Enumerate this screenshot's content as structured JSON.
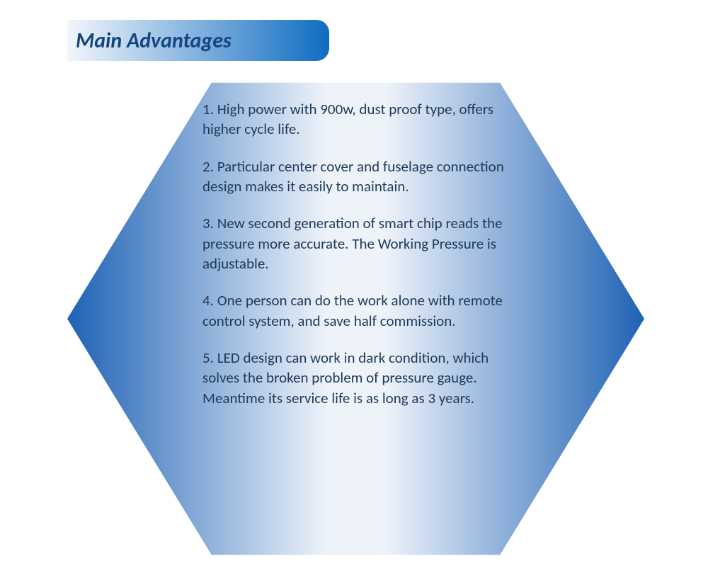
{
  "title": {
    "text": "Main Advantages",
    "color": "#14457e",
    "fontsize": 30,
    "banner_gradient_start": "#f2f6fb",
    "banner_gradient_end": "#0f6cc2"
  },
  "hexagon": {
    "gradient_start": "#1e62b4",
    "gradient_mid": "#eef3fa",
    "gradient_end": "#1e62b4"
  },
  "body": {
    "text_color": "#1f3a5a",
    "fontsize": 21
  },
  "items": [
    "1. High power with 900w, dust proof type, offers higher cycle life.",
    "2. Particular center cover and fuselage connection design makes it easily to maintain.",
    "3. New second generation of smart chip reads the pressure more accurate. The Working Pressure is adjustable.",
    "4. One person can do the work alone with remote control system, and save half commission.",
    "5. LED design can work in dark condition, which solves the broken problem of pressure gauge. Meantime its service life is as long as 3 years."
  ]
}
